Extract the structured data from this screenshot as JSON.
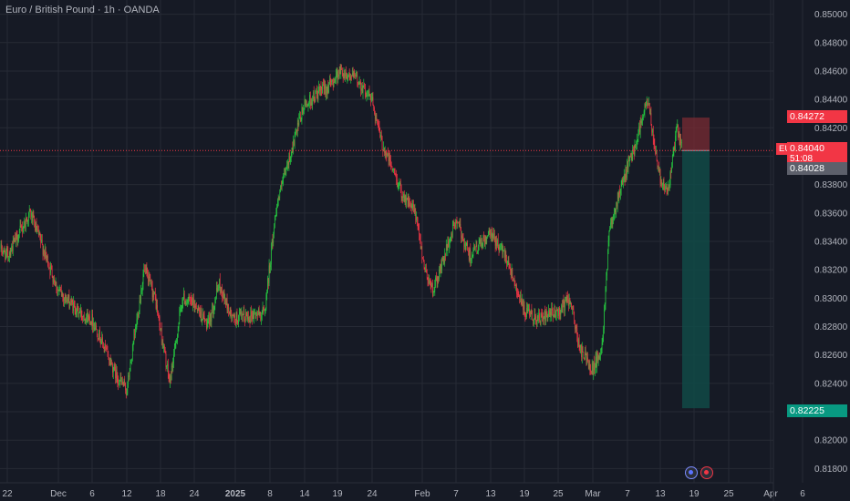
{
  "header": {
    "title": "Euro / British Pound · 1h · OANDA"
  },
  "price_axis": {
    "ticks": [
      "0.85000",
      "0.84800",
      "0.84600",
      "0.84400",
      "0.84200",
      "0.84000",
      "0.83800",
      "0.83600",
      "0.83400",
      "0.83200",
      "0.83000",
      "0.82800",
      "0.82600",
      "0.82400",
      "0.82200",
      "0.82000",
      "0.81800"
    ]
  },
  "time_axis": {
    "labels": [
      "22",
      "Dec",
      "6",
      "12",
      "18",
      "24",
      "2025",
      "8",
      "14",
      "19",
      "24",
      "Feb",
      "7",
      "13",
      "19",
      "25",
      "Mar",
      "7",
      "13",
      "19",
      "25",
      "Apr",
      "6"
    ]
  },
  "badges": {
    "symbol": "EURGBP",
    "stop_price": "0.84272",
    "entry_price": "0.84040",
    "countdown": "51:08",
    "bid_price": "0.84028",
    "target_price": "0.82225"
  },
  "colors": {
    "background": "#161a25",
    "up": "#26c940",
    "down": "#f23645",
    "grid": "#262a35",
    "axis_text": "#b2b5be",
    "stop_zone": "#7a2b33",
    "target_zone": "#114a47",
    "price_line": "#f23645"
  },
  "event_icons": [
    "economic-event-icon",
    "economic-event-icon"
  ],
  "chart_data": {
    "type": "candlestick",
    "symbol": "EURGBP",
    "interval": "1h",
    "source": "OANDA",
    "ylim": [
      0.817,
      0.851
    ],
    "x": [
      "22",
      "Dec",
      "6",
      "12",
      "18",
      "24",
      "2025",
      "8",
      "14",
      "19",
      "24",
      "Feb",
      "7",
      "13",
      "19",
      "25",
      "Mar",
      "7",
      "13",
      "19",
      "25",
      "Apr",
      "6"
    ],
    "close_path": [
      {
        "x": "Nov 20",
        "y": 0.8335
      },
      {
        "x": "Nov 22",
        "y": 0.833
      },
      {
        "x": "Nov 27",
        "y": 0.836
      },
      {
        "x": "Dec 1",
        "y": 0.8305
      },
      {
        "x": "Dec 4",
        "y": 0.829
      },
      {
        "x": "Dec 6",
        "y": 0.8285
      },
      {
        "x": "Dec 10",
        "y": 0.8245
      },
      {
        "x": "Dec 12",
        "y": 0.8235
      },
      {
        "x": "Dec 14",
        "y": 0.832
      },
      {
        "x": "Dec 16",
        "y": 0.83
      },
      {
        "x": "Dec 18",
        "y": 0.824
      },
      {
        "x": "Dec 20",
        "y": 0.83
      },
      {
        "x": "Dec 23",
        "y": 0.8295
      },
      {
        "x": "Dec 26",
        "y": 0.828
      },
      {
        "x": "Dec 28",
        "y": 0.831
      },
      {
        "x": "2025-01-01",
        "y": 0.8285
      },
      {
        "x": "Jan 6",
        "y": 0.829
      },
      {
        "x": "Jan 8",
        "y": 0.8365
      },
      {
        "x": "Jan 10",
        "y": 0.84
      },
      {
        "x": "Jan 12",
        "y": 0.8435
      },
      {
        "x": "Jan 15",
        "y": 0.8445
      },
      {
        "x": "Jan 17",
        "y": 0.845
      },
      {
        "x": "Jan 19",
        "y": 0.846
      },
      {
        "x": "Jan 22",
        "y": 0.8455
      },
      {
        "x": "Jan 24",
        "y": 0.844
      },
      {
        "x": "Jan 27",
        "y": 0.841
      },
      {
        "x": "Jan 29",
        "y": 0.8395
      },
      {
        "x": "Jan 31",
        "y": 0.8375
      },
      {
        "x": "Feb 3",
        "y": 0.836
      },
      {
        "x": "Feb 4",
        "y": 0.832
      },
      {
        "x": "Feb 6",
        "y": 0.8305
      },
      {
        "x": "Feb 7",
        "y": 0.8355
      },
      {
        "x": "Feb 10",
        "y": 0.833
      },
      {
        "x": "Feb 13",
        "y": 0.8345
      },
      {
        "x": "Feb 16",
        "y": 0.833
      },
      {
        "x": "Feb 19",
        "y": 0.829
      },
      {
        "x": "Feb 22",
        "y": 0.8285
      },
      {
        "x": "Feb 25",
        "y": 0.829
      },
      {
        "x": "Feb 27",
        "y": 0.83
      },
      {
        "x": "Mar 1",
        "y": 0.8265
      },
      {
        "x": "Mar 3",
        "y": 0.825
      },
      {
        "x": "Mar 5",
        "y": 0.8265
      },
      {
        "x": "Mar 6",
        "y": 0.835
      },
      {
        "x": "Mar 7",
        "y": 0.838
      },
      {
        "x": "Mar 9",
        "y": 0.8405
      },
      {
        "x": "Mar 11",
        "y": 0.844
      },
      {
        "x": "Mar 12",
        "y": 0.841
      },
      {
        "x": "Mar 13",
        "y": 0.8385
      },
      {
        "x": "Mar 14",
        "y": 0.8375
      },
      {
        "x": "Mar 15",
        "y": 0.842
      },
      {
        "x": "Mar 17",
        "y": 0.8404
      }
    ],
    "current_price": 0.8404,
    "bid_price": 0.84028,
    "position": {
      "type": "short",
      "entry": 0.8404,
      "stop": 0.84272,
      "target": 0.82225
    },
    "grid": true
  }
}
